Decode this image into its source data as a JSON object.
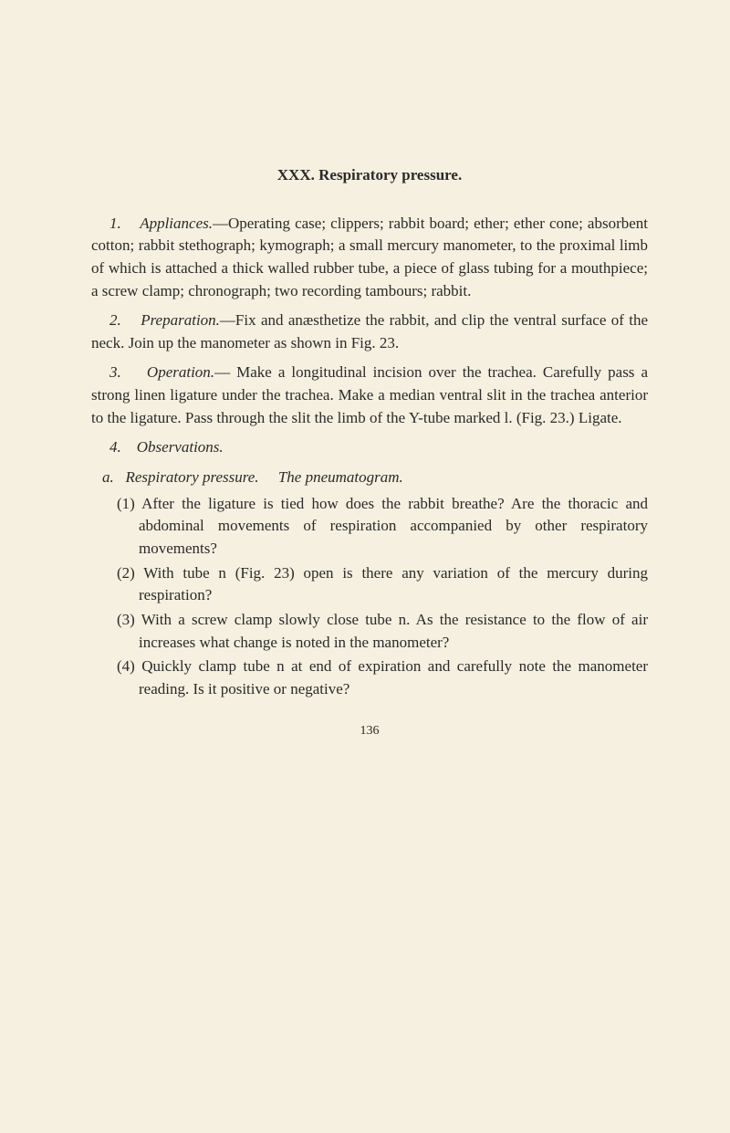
{
  "chapter": {
    "number": "XXX.",
    "title": "Respiratory pressure."
  },
  "sections": {
    "s1": {
      "num": "1.",
      "title": "Appliances.",
      "text": "—Operating case; clippers; rabbit board; ether; ether cone; absorbent cotton; rabbit stethograph; kymograph; a small mercury manometer, to the proximal limb of which is attached a thick walled rubber tube, a piece of glass tubing for a mouthpiece; a screw clamp; chronograph; two recording tambours; rabbit."
    },
    "s2": {
      "num": "2.",
      "title": "Preparation.",
      "text": "—Fix and anæsthetize the rabbit, and clip the ventral surface of the neck. Join up the manometer as shown in Fig. 23."
    },
    "s3": {
      "num": "3.",
      "title": "Operation.",
      "text": "— Make a longitudinal incision over the trachea. Carefully pass a strong linen ligature under the trachea. Make a median ventral slit in the trachea anterior to the ligature. Pass through the slit the limb of the Y-tube marked l. (Fig. 23.) Ligate."
    },
    "s4": {
      "num": "4.",
      "title": "Observations."
    },
    "sub_a": {
      "label": "a.",
      "title": "Respiratory pressure.",
      "subtitle": "The pneumatogram."
    },
    "items": {
      "i1": {
        "num": "(1)",
        "text": "After the ligature is tied how does the rabbit breathe? Are the thoracic and abdominal movements of respiration accompanied by other respiratory movements?"
      },
      "i2": {
        "num": "(2)",
        "text": "With tube n (Fig. 23) open is there any variation of the mercury during respiration?"
      },
      "i3": {
        "num": "(3)",
        "text": "With a screw clamp slowly close tube n. As the resistance to the flow of air increases what change is noted in the manometer?"
      },
      "i4": {
        "num": "(4)",
        "text": "Quickly clamp tube n at end of expiration and carefully note the manometer reading. Is it positive or negative?"
      }
    }
  },
  "pageNumber": "136"
}
